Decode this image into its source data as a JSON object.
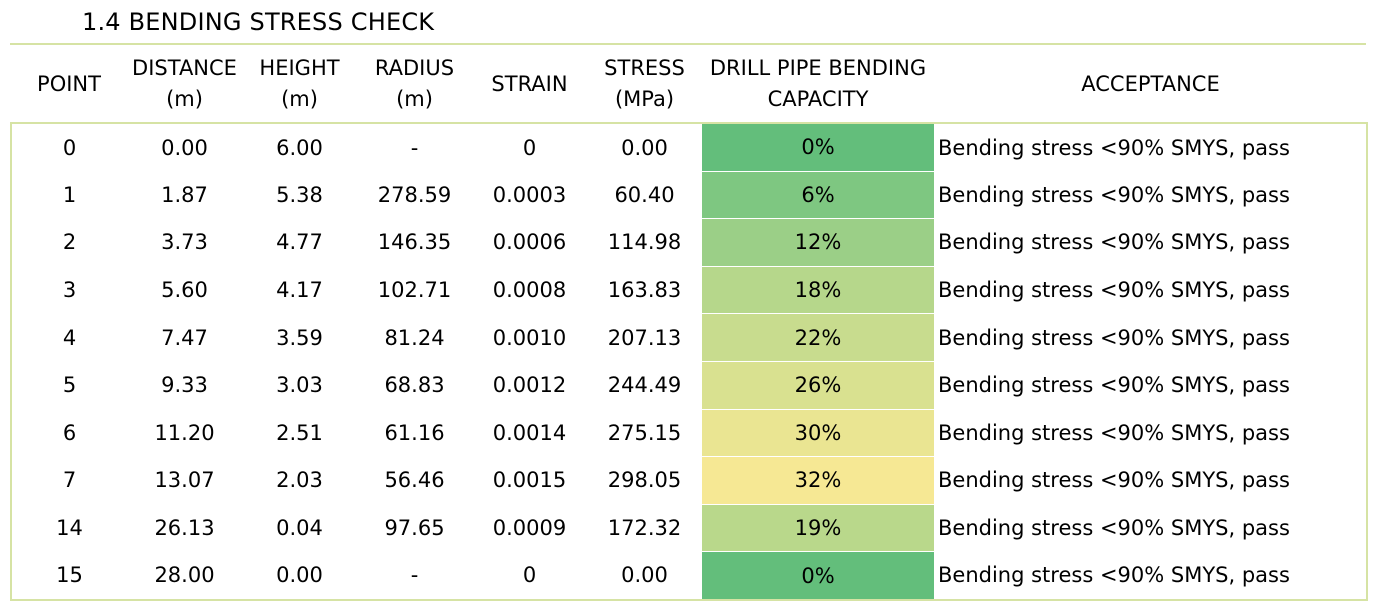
{
  "title": "1.4  BENDING STRESS CHECK",
  "headers": {
    "point": "POINT",
    "distance": [
      "DISTANCE",
      "(m)"
    ],
    "height": [
      "HEIGHT",
      "(m)"
    ],
    "radius": [
      "RADIUS",
      "(m)"
    ],
    "strain": "STRAIN",
    "stress": [
      "STRESS",
      "(MPa)"
    ],
    "capacity": [
      "DRILL PIPE BENDING",
      "CAPACITY"
    ],
    "acceptance": "ACCEPTANCE"
  },
  "rows": [
    {
      "point": "0",
      "distance": "0.00",
      "height": "6.00",
      "radius": "-",
      "strain": "0",
      "stress": "0.00",
      "capacity": "0%",
      "color": "#63be7b",
      "acceptance": "Bending stress <90% SMYS, pass"
    },
    {
      "point": "1",
      "distance": "1.87",
      "height": "5.38",
      "radius": "278.59",
      "strain": "0.0003",
      "stress": "60.40",
      "capacity": "6%",
      "color": "#7ec781",
      "acceptance": "Bending stress <90% SMYS, pass"
    },
    {
      "point": "2",
      "distance": "3.73",
      "height": "4.77",
      "radius": "146.35",
      "strain": "0.0006",
      "stress": "114.98",
      "capacity": "12%",
      "color": "#9bcf87",
      "acceptance": "Bending stress <90% SMYS, pass"
    },
    {
      "point": "3",
      "distance": "5.60",
      "height": "4.17",
      "radius": "102.71",
      "strain": "0.0008",
      "stress": "163.83",
      "capacity": "18%",
      "color": "#b6d78b",
      "acceptance": "Bending stress <90% SMYS, pass"
    },
    {
      "point": "4",
      "distance": "7.47",
      "height": "3.59",
      "radius": "81.24",
      "strain": "0.0010",
      "stress": "207.13",
      "capacity": "22%",
      "color": "#c8dc8e",
      "acceptance": "Bending stress <90% SMYS, pass"
    },
    {
      "point": "5",
      "distance": "9.33",
      "height": "3.03",
      "radius": "68.83",
      "strain": "0.0012",
      "stress": "244.49",
      "capacity": "26%",
      "color": "#d9e190",
      "acceptance": "Bending stress <90% SMYS, pass"
    },
    {
      "point": "6",
      "distance": "11.20",
      "height": "2.51",
      "radius": "61.16",
      "strain": "0.0014",
      "stress": "275.15",
      "capacity": "30%",
      "color": "#eae592",
      "acceptance": "Bending stress <90% SMYS, pass"
    },
    {
      "point": "7",
      "distance": "13.07",
      "height": "2.03",
      "radius": "56.46",
      "strain": "0.0015",
      "stress": "298.05",
      "capacity": "32%",
      "color": "#f6e894",
      "acceptance": "Bending stress <90% SMYS, pass"
    },
    {
      "point": "14",
      "distance": "26.13",
      "height": "0.04",
      "radius": "97.65",
      "strain": "0.0009",
      "stress": "172.32",
      "capacity": "19%",
      "color": "#b9d88b",
      "acceptance": "Bending stress <90% SMYS, pass"
    },
    {
      "point": "15",
      "distance": "28.00",
      "height": "0.00",
      "radius": "-",
      "strain": "0",
      "stress": "0.00",
      "capacity": "0%",
      "color": "#63be7b",
      "acceptance": "Bending stress <90% SMYS, pass"
    }
  ]
}
